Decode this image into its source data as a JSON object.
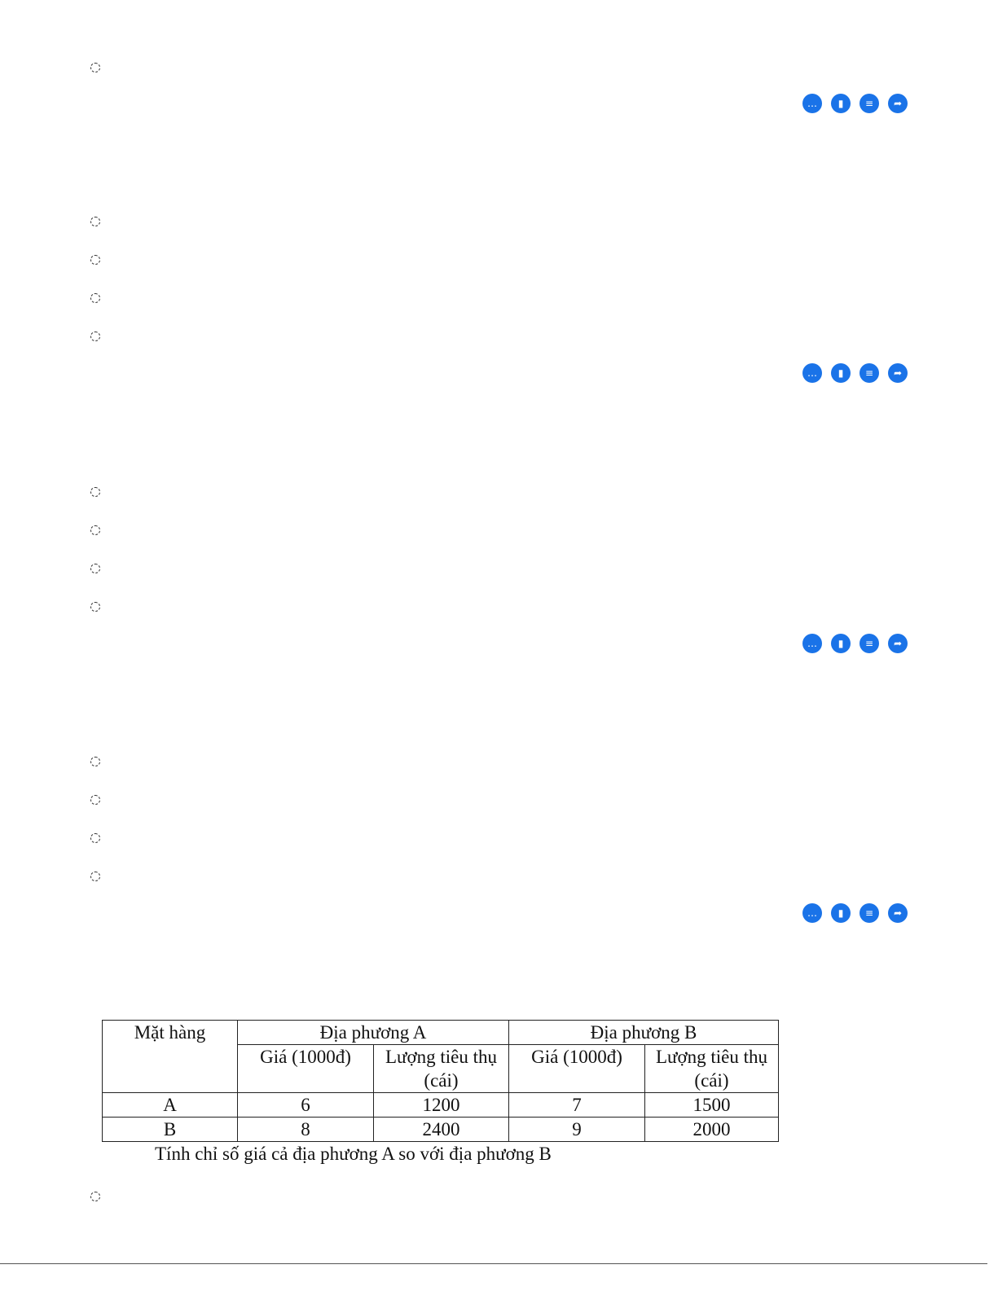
{
  "actions": {
    "icons": [
      "comment-icon",
      "bookmark-icon",
      "note-icon",
      "share-icon"
    ],
    "color": "#1a73e8"
  },
  "table": {
    "header": {
      "item": "Mặt hàng",
      "region_a": "Địa phương A",
      "region_b": "Địa phương B",
      "price": "Giá (1000đ)",
      "qty": "Lượng tiêu thụ (cái)"
    },
    "rows": [
      [
        "A",
        "6",
        "1200",
        "7",
        "1500"
      ],
      [
        "B",
        "8",
        "2400",
        "9",
        "2000"
      ]
    ]
  },
  "question": "Tính chỉ số giá cả địa phương A so với địa phương B"
}
